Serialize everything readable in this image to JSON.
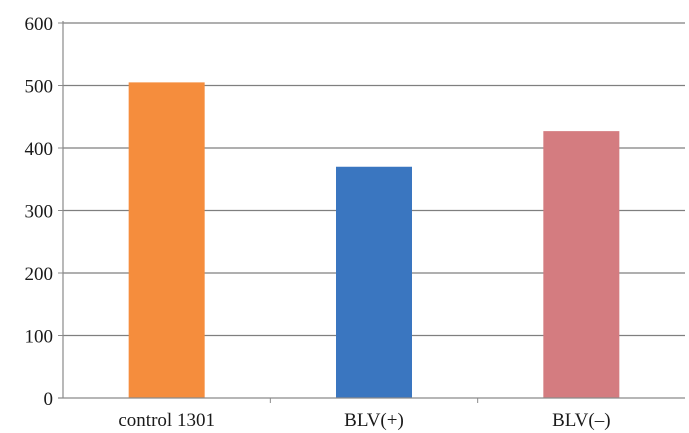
{
  "chart_data": {
    "type": "bar",
    "categories": [
      "control 1301",
      "BLV(+)",
      "BLV(–)"
    ],
    "values": [
      505,
      370,
      427
    ],
    "colors": [
      "#F58D3D",
      "#3A76C0",
      "#D47C80"
    ],
    "title": "",
    "xlabel": "",
    "ylabel": "",
    "ylim": [
      0,
      600
    ],
    "yticks": [
      0,
      100,
      200,
      300,
      400,
      500,
      600
    ],
    "grid": true,
    "grid_color": "#7f7f7f",
    "axis_color": "#8a8a8a"
  }
}
